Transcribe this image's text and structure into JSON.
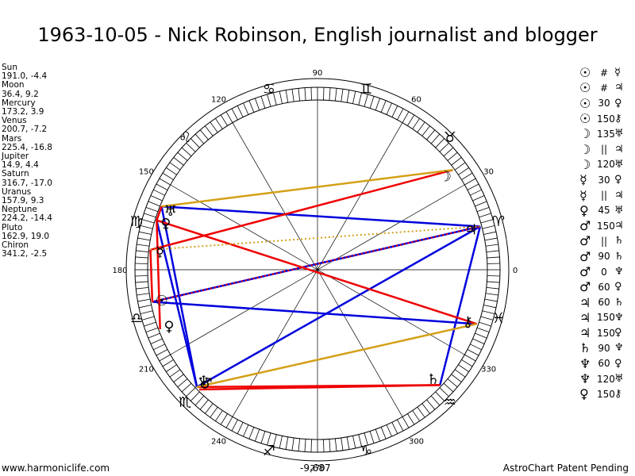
{
  "title": "1963-10-05 - Nick Robinson, English journalist and blogger",
  "planets": [
    {
      "name": "Sun",
      "pos": "191.0, -4.4"
    },
    {
      "name": "Moon",
      "pos": "36.4, 9.2"
    },
    {
      "name": "Mercury",
      "pos": "173.2, 3.9"
    },
    {
      "name": "Venus",
      "pos": "200.7, -7.2"
    },
    {
      "name": "Mars",
      "pos": "225.4, -16.8"
    },
    {
      "name": "Jupiter",
      "pos": "14.9, 4.4"
    },
    {
      "name": "Saturn",
      "pos": "316.7, -17.0"
    },
    {
      "name": "Uranus",
      "pos": "157.9, 9.3"
    },
    {
      "name": "Neptune",
      "pos": "224.2, -14.4"
    },
    {
      "name": "Pluto",
      "pos": "162.9, 19.0"
    },
    {
      "name": "Chiron",
      "pos": "341.2, -2.5"
    }
  ],
  "aspects": [
    {
      "p1": "☉",
      "a": "#",
      "p2": "☿"
    },
    {
      "p1": "☉",
      "a": "#",
      "p2": "♃"
    },
    {
      "p1": "☉",
      "a": "30",
      "p2": "♀"
    },
    {
      "p1": "☉",
      "a": "150",
      "p2": "⚷"
    },
    {
      "p1": "☽",
      "a": "135",
      "p2": "♅"
    },
    {
      "p1": "☽",
      "a": "||",
      "p2": "♃"
    },
    {
      "p1": "☽",
      "a": "120",
      "p2": "♅"
    },
    {
      "p1": "☿",
      "a": "30",
      "p2": "♀"
    },
    {
      "p1": "☿",
      "a": "||",
      "p2": "♃"
    },
    {
      "p1": "♀",
      "a": "45",
      "p2": "♅"
    },
    {
      "p1": "♂",
      "a": "150",
      "p2": "♃"
    },
    {
      "p1": "♂",
      "a": "||",
      "p2": "♄"
    },
    {
      "p1": "♂",
      "a": "90",
      "p2": "♄"
    },
    {
      "p1": "♂",
      "a": "0",
      "p2": "♆"
    },
    {
      "p1": "♂",
      "a": "60",
      "p2": "♀"
    },
    {
      "p1": "♃",
      "a": "60",
      "p2": "♄"
    },
    {
      "p1": "♃",
      "a": "150",
      "p2": "♆"
    },
    {
      "p1": "♃",
      "a": "150",
      "p2": "♀"
    },
    {
      "p1": "♄",
      "a": "90",
      "p2": "♆"
    },
    {
      "p1": "♆",
      "a": "60",
      "p2": "♀"
    },
    {
      "p1": "♆",
      "a": "120",
      "p2": "♅"
    },
    {
      "p1": "♀",
      "a": "150",
      "p2": "⚷"
    }
  ],
  "degree_labels": [
    "0",
    "30",
    "60",
    "90",
    "120",
    "150",
    "180",
    "210",
    "240",
    "270",
    "300",
    "330"
  ],
  "signs": [
    "♈",
    "♉",
    "♊",
    "♋",
    "♌",
    "♍",
    "♎",
    "♏",
    "♐",
    "♑",
    "♒",
    "♓"
  ],
  "footer": {
    "left": "www.harmoniclife.com",
    "center": "-9,687",
    "right": "AstroChart Patent Pending"
  },
  "colors": {
    "conjunction_trine": "#0000dd",
    "square_opposition": "#ee0000",
    "minor": "#d4a017"
  }
}
